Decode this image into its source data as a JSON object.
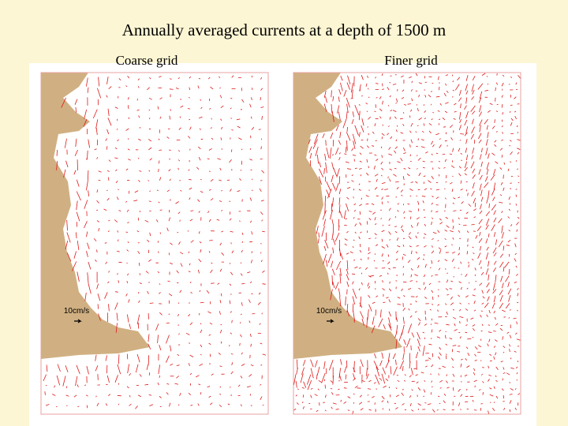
{
  "title": "Annually averaged currents at a depth of 1500 m",
  "panels": [
    {
      "label": "Coarse grid",
      "scale_label": "10cm/s"
    },
    {
      "label": "Finer grid",
      "scale_label": "10cm/s"
    }
  ]
}
